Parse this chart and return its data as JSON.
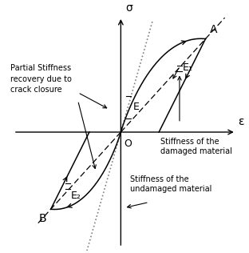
{
  "background_color": "#ffffff",
  "figsize": [
    3.12,
    3.16
  ],
  "dpi": 100,
  "labels": {
    "sigma": "σ",
    "epsilon": "ε",
    "origin": "O",
    "A": "A",
    "B": "B",
    "E": "E",
    "E1": "E₁",
    "E2": "E₂"
  },
  "annotations": {
    "partial_stiffness": "Partial Stiffness\nrecovery due to\ncrack closure",
    "damaged": "Stiffness of the\ndamaged material",
    "undamaged": "Stiffness of the\nundamaged material"
  }
}
